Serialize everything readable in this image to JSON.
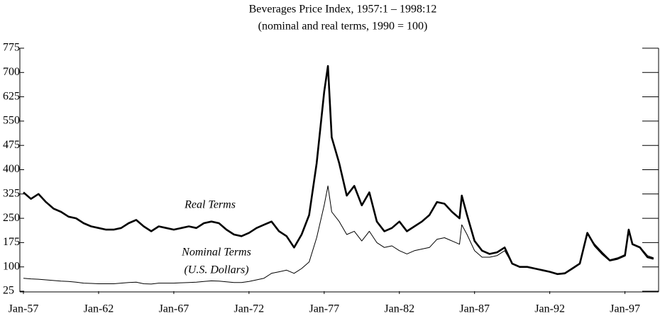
{
  "chart_data": {
    "type": "line",
    "title": "Beverages Price Index, 1957:1 – 1998:12",
    "subtitle": "(nominal and real terms, 1990 = 100)",
    "annotations": [
      "Real Terms",
      "Nominal Terms",
      "(U.S. Dollars)"
    ],
    "x": [
      1957,
      1957.5,
      1958,
      1958.5,
      1959,
      1959.5,
      1960,
      1960.5,
      1961,
      1961.5,
      1962,
      1962.5,
      1963,
      1963.5,
      1964,
      1964.5,
      1965,
      1965.5,
      1966,
      1966.5,
      1967,
      1967.5,
      1968,
      1968.5,
      1969,
      1969.5,
      1970,
      1970.5,
      1971,
      1971.5,
      1972,
      1972.5,
      1973,
      1973.5,
      1974,
      1974.5,
      1975,
      1975.5,
      1976,
      1976.5,
      1977,
      1977.25,
      1977.5,
      1978,
      1978.5,
      1979,
      1979.5,
      1980,
      1980.5,
      1981,
      1981.5,
      1982,
      1982.5,
      1983,
      1983.5,
      1984,
      1984.5,
      1985,
      1985.5,
      1986,
      1986.15,
      1986.5,
      1987,
      1987.5,
      1988,
      1988.5,
      1989,
      1989.5,
      1990,
      1990.5,
      1991,
      1991.5,
      1992,
      1992.5,
      1993,
      1993.5,
      1994,
      1994.5,
      1995,
      1995.5,
      1996,
      1996.5,
      1997,
      1997.25,
      1997.5,
      1998,
      1998.5,
      1998.9
    ],
    "series": [
      {
        "name": "Real Terms",
        "color": "#000000",
        "values": [
          330,
          310,
          325,
          300,
          280,
          270,
          255,
          250,
          235,
          225,
          220,
          215,
          215,
          220,
          235,
          245,
          225,
          210,
          225,
          220,
          215,
          220,
          225,
          220,
          235,
          240,
          235,
          215,
          200,
          195,
          205,
          220,
          230,
          240,
          210,
          195,
          160,
          200,
          260,
          420,
          640,
          720,
          500,
          420,
          320,
          350,
          290,
          330,
          240,
          210,
          220,
          240,
          210,
          225,
          240,
          260,
          300,
          295,
          270,
          250,
          320,
          260,
          180,
          150,
          140,
          145,
          160,
          110,
          100,
          100,
          95,
          90,
          85,
          78,
          80,
          95,
          110,
          205,
          165,
          140,
          120,
          125,
          135,
          215,
          170,
          160,
          130,
          125
        ]
      },
      {
        "name": "Nominal Terms",
        "color": "#000000",
        "values": [
          65,
          63,
          62,
          60,
          58,
          56,
          55,
          53,
          50,
          49,
          48,
          48,
          48,
          50,
          52,
          53,
          48,
          47,
          50,
          50,
          50,
          51,
          52,
          53,
          55,
          57,
          56,
          54,
          52,
          52,
          55,
          60,
          65,
          80,
          85,
          90,
          80,
          95,
          115,
          190,
          290,
          350,
          270,
          240,
          200,
          210,
          180,
          210,
          175,
          160,
          165,
          150,
          140,
          150,
          155,
          160,
          185,
          190,
          180,
          170,
          230,
          200,
          150,
          130,
          130,
          135,
          150,
          110,
          100,
          100,
          95,
          90,
          85,
          78,
          82,
          97,
          112,
          200,
          170,
          145,
          122,
          128,
          138,
          205,
          172,
          162,
          135,
          128
        ]
      }
    ],
    "xlim": [
      1957,
      1999
    ],
    "xticks": [
      {
        "value": 1957,
        "label": "Jan-57"
      },
      {
        "value": 1962,
        "label": "Jan-62"
      },
      {
        "value": 1967,
        "label": "Jan-67"
      },
      {
        "value": 1972,
        "label": "Jan-72"
      },
      {
        "value": 1977,
        "label": "Jan-77"
      },
      {
        "value": 1982,
        "label": "Jan-82"
      },
      {
        "value": 1987,
        "label": "Jan-87"
      },
      {
        "value": 1992,
        "label": "Jan-92"
      },
      {
        "value": 1997,
        "label": "Jan-97"
      }
    ],
    "ylim": [
      25,
      775
    ],
    "yticks": [
      25,
      100,
      175,
      250,
      325,
      400,
      475,
      550,
      625,
      700,
      775
    ]
  }
}
